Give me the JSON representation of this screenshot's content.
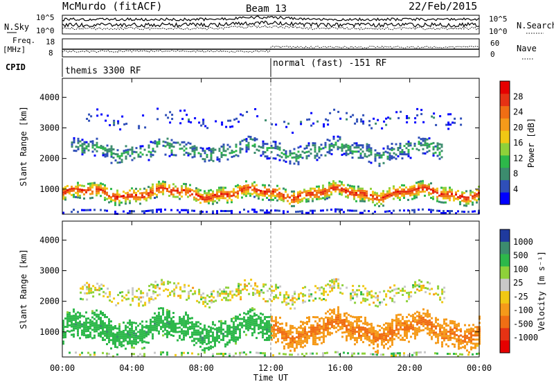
{
  "header": {
    "station": "McMurdo (fitACF)",
    "beam": "Beam 13",
    "date": "22/Feb/2015"
  },
  "param_panels": {
    "left_labels": {
      "nsky": "N.Sky",
      "freq": "Freq.",
      "freq_unit": "[MHz]",
      "cpid": "CPID"
    },
    "right_labels": {
      "nsearch": "N.Search",
      "nave": "Nave"
    },
    "noise_ticks_left": [
      "10^5",
      "10^0"
    ],
    "noise_ticks_right": [
      "10^5",
      "10^0"
    ],
    "freq_ticks_left": [
      "18",
      "8"
    ],
    "nave_ticks_right": [
      "60",
      "0"
    ],
    "cpid_segments": [
      {
        "label": "themis 3300 RF",
        "start": "00:00",
        "end": "12:00"
      },
      {
        "label": "normal (fast) -151 RF",
        "start": "12:00",
        "end": "24:00"
      }
    ]
  },
  "colors": {
    "power_scale": [
      "#0000ff",
      "#2f4fb8",
      "#3c8c6e",
      "#2db84a",
      "#8ed13a",
      "#f0c814",
      "#f59a1a",
      "#f06e14",
      "#e63214",
      "#e60000"
    ],
    "velocity_scale": [
      "#1f3a9e",
      "#3c8c6e",
      "#2db84a",
      "#8ed13a",
      "#c8c8c8",
      "#f0c814",
      "#f59a1a",
      "#f06e14",
      "#e63214",
      "#e60000"
    ],
    "ground_scatter": "#b4b4b4"
  },
  "chart_data": [
    {
      "type": "heatmap",
      "title": "Power",
      "xlabel": "Time UT",
      "ylabel": "Slant Range [km]",
      "x_ticks": [
        "00:00",
        "04:00",
        "08:00",
        "12:00",
        "16:00",
        "20:00",
        "00:00"
      ],
      "x_range_hours": [
        0,
        24
      ],
      "y_ticks": [
        1000,
        2000,
        3000,
        4000
      ],
      "y_range_km": [
        180,
        4620
      ],
      "colorbar": {
        "label": "Power [dB]",
        "ticks": [
          4,
          8,
          12,
          16,
          20,
          24,
          28
        ],
        "range": [
          0,
          32
        ]
      },
      "bands": [
        {
          "name": "near-range",
          "t_start": 0,
          "t_end": 24,
          "r_center": 320,
          "r_width": 120,
          "level": 3,
          "density": 0.6
        },
        {
          "name": "main-echo",
          "t_start": 0,
          "t_end": 24,
          "r_center": 900,
          "r_width": 500,
          "level": 26,
          "density": 0.9
        },
        {
          "name": "secondary",
          "t_start": 0.5,
          "t_end": 22,
          "r_center": 2300,
          "r_width": 600,
          "level": 9,
          "density": 0.55
        },
        {
          "name": "far-range",
          "t_start": 1,
          "t_end": 23,
          "r_center": 3300,
          "r_width": 500,
          "level": 5,
          "density": 0.15
        }
      ]
    },
    {
      "type": "heatmap",
      "title": "Velocity",
      "xlabel": "Time UT",
      "ylabel": "Slant Range [km]",
      "x_ticks": [
        "00:00",
        "04:00",
        "08:00",
        "12:00",
        "16:00",
        "20:00",
        "00:00"
      ],
      "x_range_hours": [
        0,
        24
      ],
      "y_ticks": [
        1000,
        2000,
        3000,
        4000
      ],
      "y_range_km": [
        180,
        4620
      ],
      "colorbar": {
        "label": "Velocity [m s⁻¹]",
        "ticks": [
          1000,
          500,
          100,
          25,
          -25,
          -100,
          -500,
          -1000
        ]
      },
      "bands": [
        {
          "name": "near-range",
          "t_start": 0,
          "t_end": 24,
          "r_center": 320,
          "r_width": 120,
          "velocity": 50,
          "density": 0.5
        },
        {
          "name": "main-echo-early",
          "t_start": 0,
          "t_end": 12,
          "r_center": 1100,
          "r_width": 900,
          "velocity": 300,
          "density": 0.9
        },
        {
          "name": "main-echo-late",
          "t_start": 12,
          "t_end": 24,
          "r_center": 1100,
          "r_width": 900,
          "velocity": -400,
          "density": 0.9
        },
        {
          "name": "secondary",
          "t_start": 1,
          "t_end": 22,
          "r_center": 2300,
          "r_width": 600,
          "velocity": 0,
          "density": 0.45
        }
      ]
    }
  ]
}
